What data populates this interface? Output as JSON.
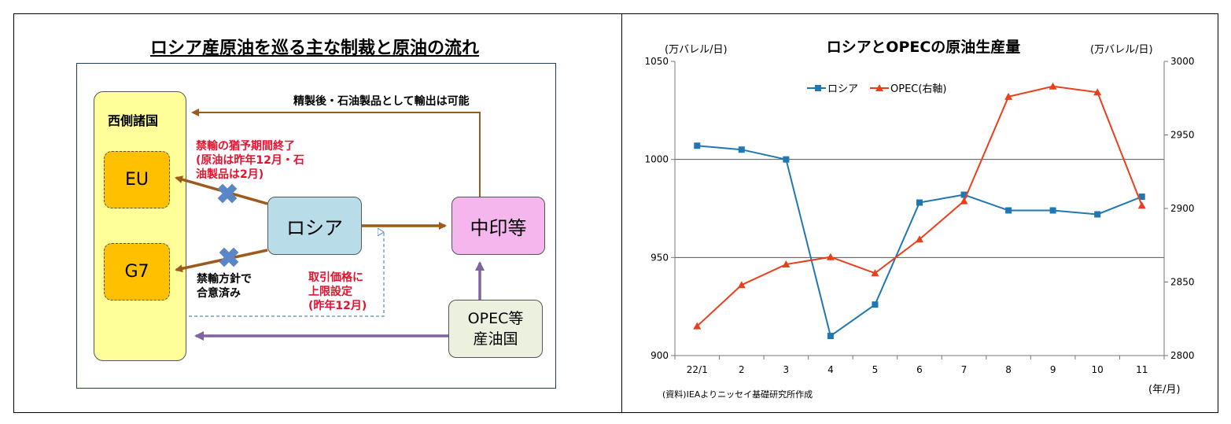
{
  "diagram": {
    "title": "ロシア産原油を巡る主な制裁と原油の流れ",
    "west_label": "西側諸国",
    "eu_label": "EU",
    "g7_label": "G7",
    "russia_label": "ロシア",
    "china_label": "中印等",
    "opec_line1": "OPEC等",
    "opec_line2": "産油国",
    "refined_note": "精製後・石油製品として輸出は可能",
    "eu_note_line1": "禁輸の猶予期間終了",
    "eu_note_line2": "(原油は昨年12月・石",
    "eu_note_line3": "油製品は2月)",
    "g7_note_line1": "禁輸方針で",
    "g7_note_line2": "合意済み",
    "cap_note_line1": "取引価格に",
    "cap_note_line2": "上限設定",
    "cap_note_line3": "(昨年12月)",
    "colors": {
      "brown_arrow": "#9c5a1c",
      "purple_arrow": "#8064a2",
      "cross": "#5b86c5",
      "red_text": "#e8112d"
    }
  },
  "chart_data": {
    "type": "line",
    "title": "ロシアとOPECの原油生産量",
    "left_unit": "(万バレル/日)",
    "right_unit": "(万バレル/日)",
    "x_unit": "(年/月)",
    "source": "(資料)IEAよりニッセイ基礎研究所作成",
    "categories": [
      "22/1",
      "2",
      "3",
      "4",
      "5",
      "6",
      "7",
      "8",
      "9",
      "10",
      "11"
    ],
    "y_left": {
      "min": 900,
      "max": 1050,
      "ticks": [
        900,
        950,
        1000,
        1050
      ]
    },
    "y_right": {
      "min": 2800,
      "max": 3000,
      "ticks": [
        2800,
        2850,
        2900,
        2950,
        3000
      ]
    },
    "gridlines": [
      950,
      1000
    ],
    "series": [
      {
        "name": "ロシア",
        "axis": "left",
        "color": "#1f77b4",
        "marker": "square",
        "values": [
          1007,
          1005,
          1000,
          910,
          926,
          978,
          982,
          974,
          974,
          972,
          981
        ]
      },
      {
        "name": "OPEC(右軸)",
        "axis": "right",
        "color": "#e8401c",
        "marker": "triangle",
        "values": [
          2820,
          2848,
          2862,
          2867,
          2856,
          2879,
          2905,
          2976,
          2983,
          2979,
          2902
        ]
      }
    ],
    "legend_position": "top-center"
  }
}
